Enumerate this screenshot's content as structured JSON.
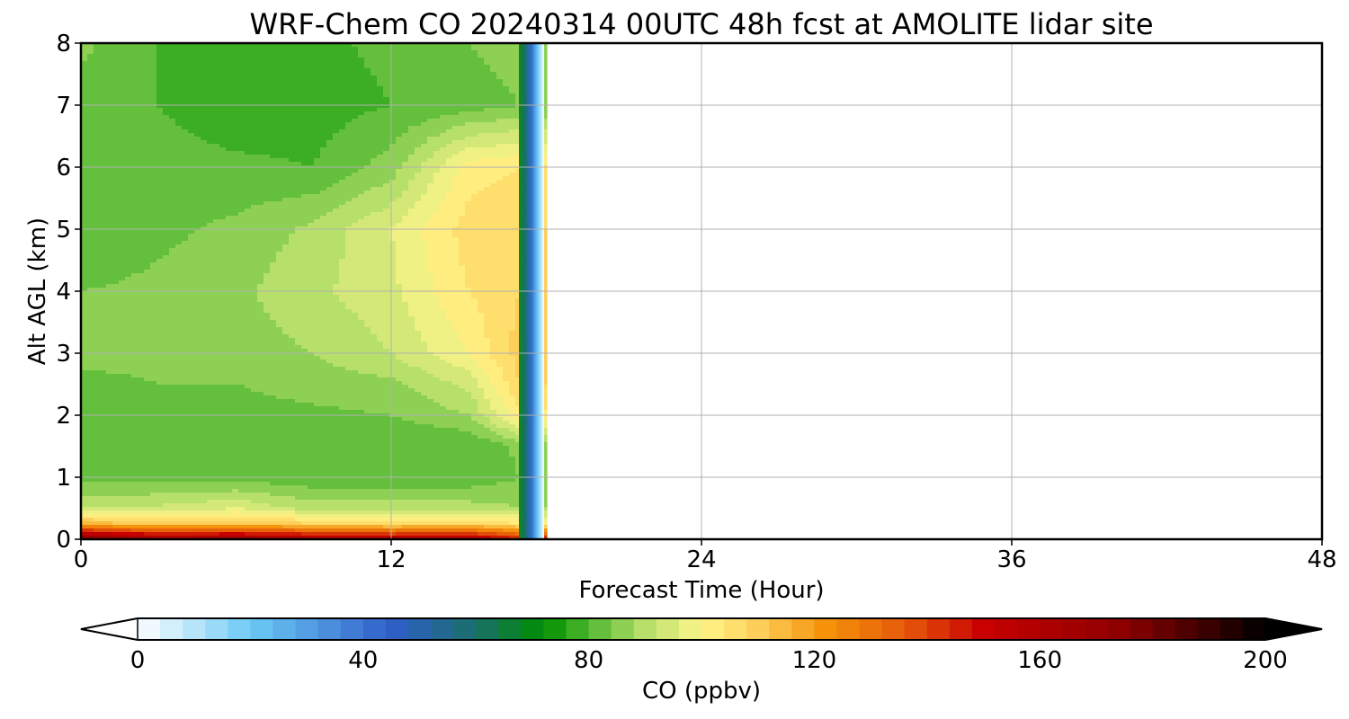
{
  "chart_data": {
    "type": "heatmap",
    "subtype": "filled-contour",
    "title": "WRF-Chem CO  20240314 00UTC 48h fcst at AMOLITE lidar site",
    "xlabel": "Forecast Time (Hour)",
    "ylabel": "Alt AGL (km)",
    "xlim": [
      0,
      48
    ],
    "ylim": [
      0,
      8
    ],
    "x_ticks": [
      "0",
      "12",
      "24",
      "36",
      "48"
    ],
    "y_ticks": [
      "0",
      "1",
      "2",
      "3",
      "4",
      "5",
      "6",
      "7",
      "8"
    ],
    "grid": true,
    "data_extent_hours": [
      0,
      17.8
    ],
    "times_hour": [
      0,
      3,
      6,
      9,
      12,
      15,
      17
    ],
    "altitudes_km": [
      0,
      0.25,
      0.5,
      1,
      1.5,
      2,
      2.5,
      3,
      4,
      5,
      6,
      7,
      8
    ],
    "values_ppbv": [
      [
        178,
        165,
        168,
        162,
        158,
        160,
        145
      ],
      [
        115,
        110,
        112,
        108,
        106,
        108,
        104
      ],
      [
        92,
        93,
        96,
        90,
        90,
        90,
        88
      ],
      [
        82,
        82,
        82,
        81,
        81,
        81,
        84
      ],
      [
        80,
        80,
        80,
        80,
        80,
        80,
        85
      ],
      [
        82,
        83,
        82,
        83,
        84,
        88,
        103
      ],
      [
        83,
        84,
        84,
        86,
        87,
        93,
        108
      ],
      [
        85,
        85,
        86,
        88,
        92,
        100,
        110
      ],
      [
        84,
        85,
        87,
        91,
        95,
        104,
        108
      ],
      [
        80,
        83,
        85,
        89,
        96,
        106,
        108
      ],
      [
        82,
        82,
        81,
        80,
        86,
        102,
        104
      ],
      [
        82,
        80,
        77,
        78,
        80,
        82,
        84
      ],
      [
        85,
        80,
        78,
        79,
        81,
        84,
        86
      ]
    ],
    "colorbar": {
      "label": "CO  (ppbv)",
      "ticks": [
        "0",
        "40",
        "80",
        "120",
        "160",
        "200"
      ],
      "range": [
        0,
        200
      ],
      "extend": "both",
      "colormap_stops": [
        {
          "v": 0,
          "c": "#ffffff"
        },
        {
          "v": 20,
          "c": "#6ccaf5"
        },
        {
          "v": 45,
          "c": "#2f5ec8"
        },
        {
          "v": 60,
          "c": "#1a6f6a"
        },
        {
          "v": 72,
          "c": "#008f00"
        },
        {
          "v": 80,
          "c": "#4fb830"
        },
        {
          "v": 90,
          "c": "#b6e06a"
        },
        {
          "v": 100,
          "c": "#fff58a"
        },
        {
          "v": 110,
          "c": "#fdcf5a"
        },
        {
          "v": 122,
          "c": "#f5920a"
        },
        {
          "v": 136,
          "c": "#e65a0a"
        },
        {
          "v": 150,
          "c": "#c80000"
        },
        {
          "v": 175,
          "c": "#8c0000"
        },
        {
          "v": 200,
          "c": "#000000"
        }
      ]
    }
  }
}
